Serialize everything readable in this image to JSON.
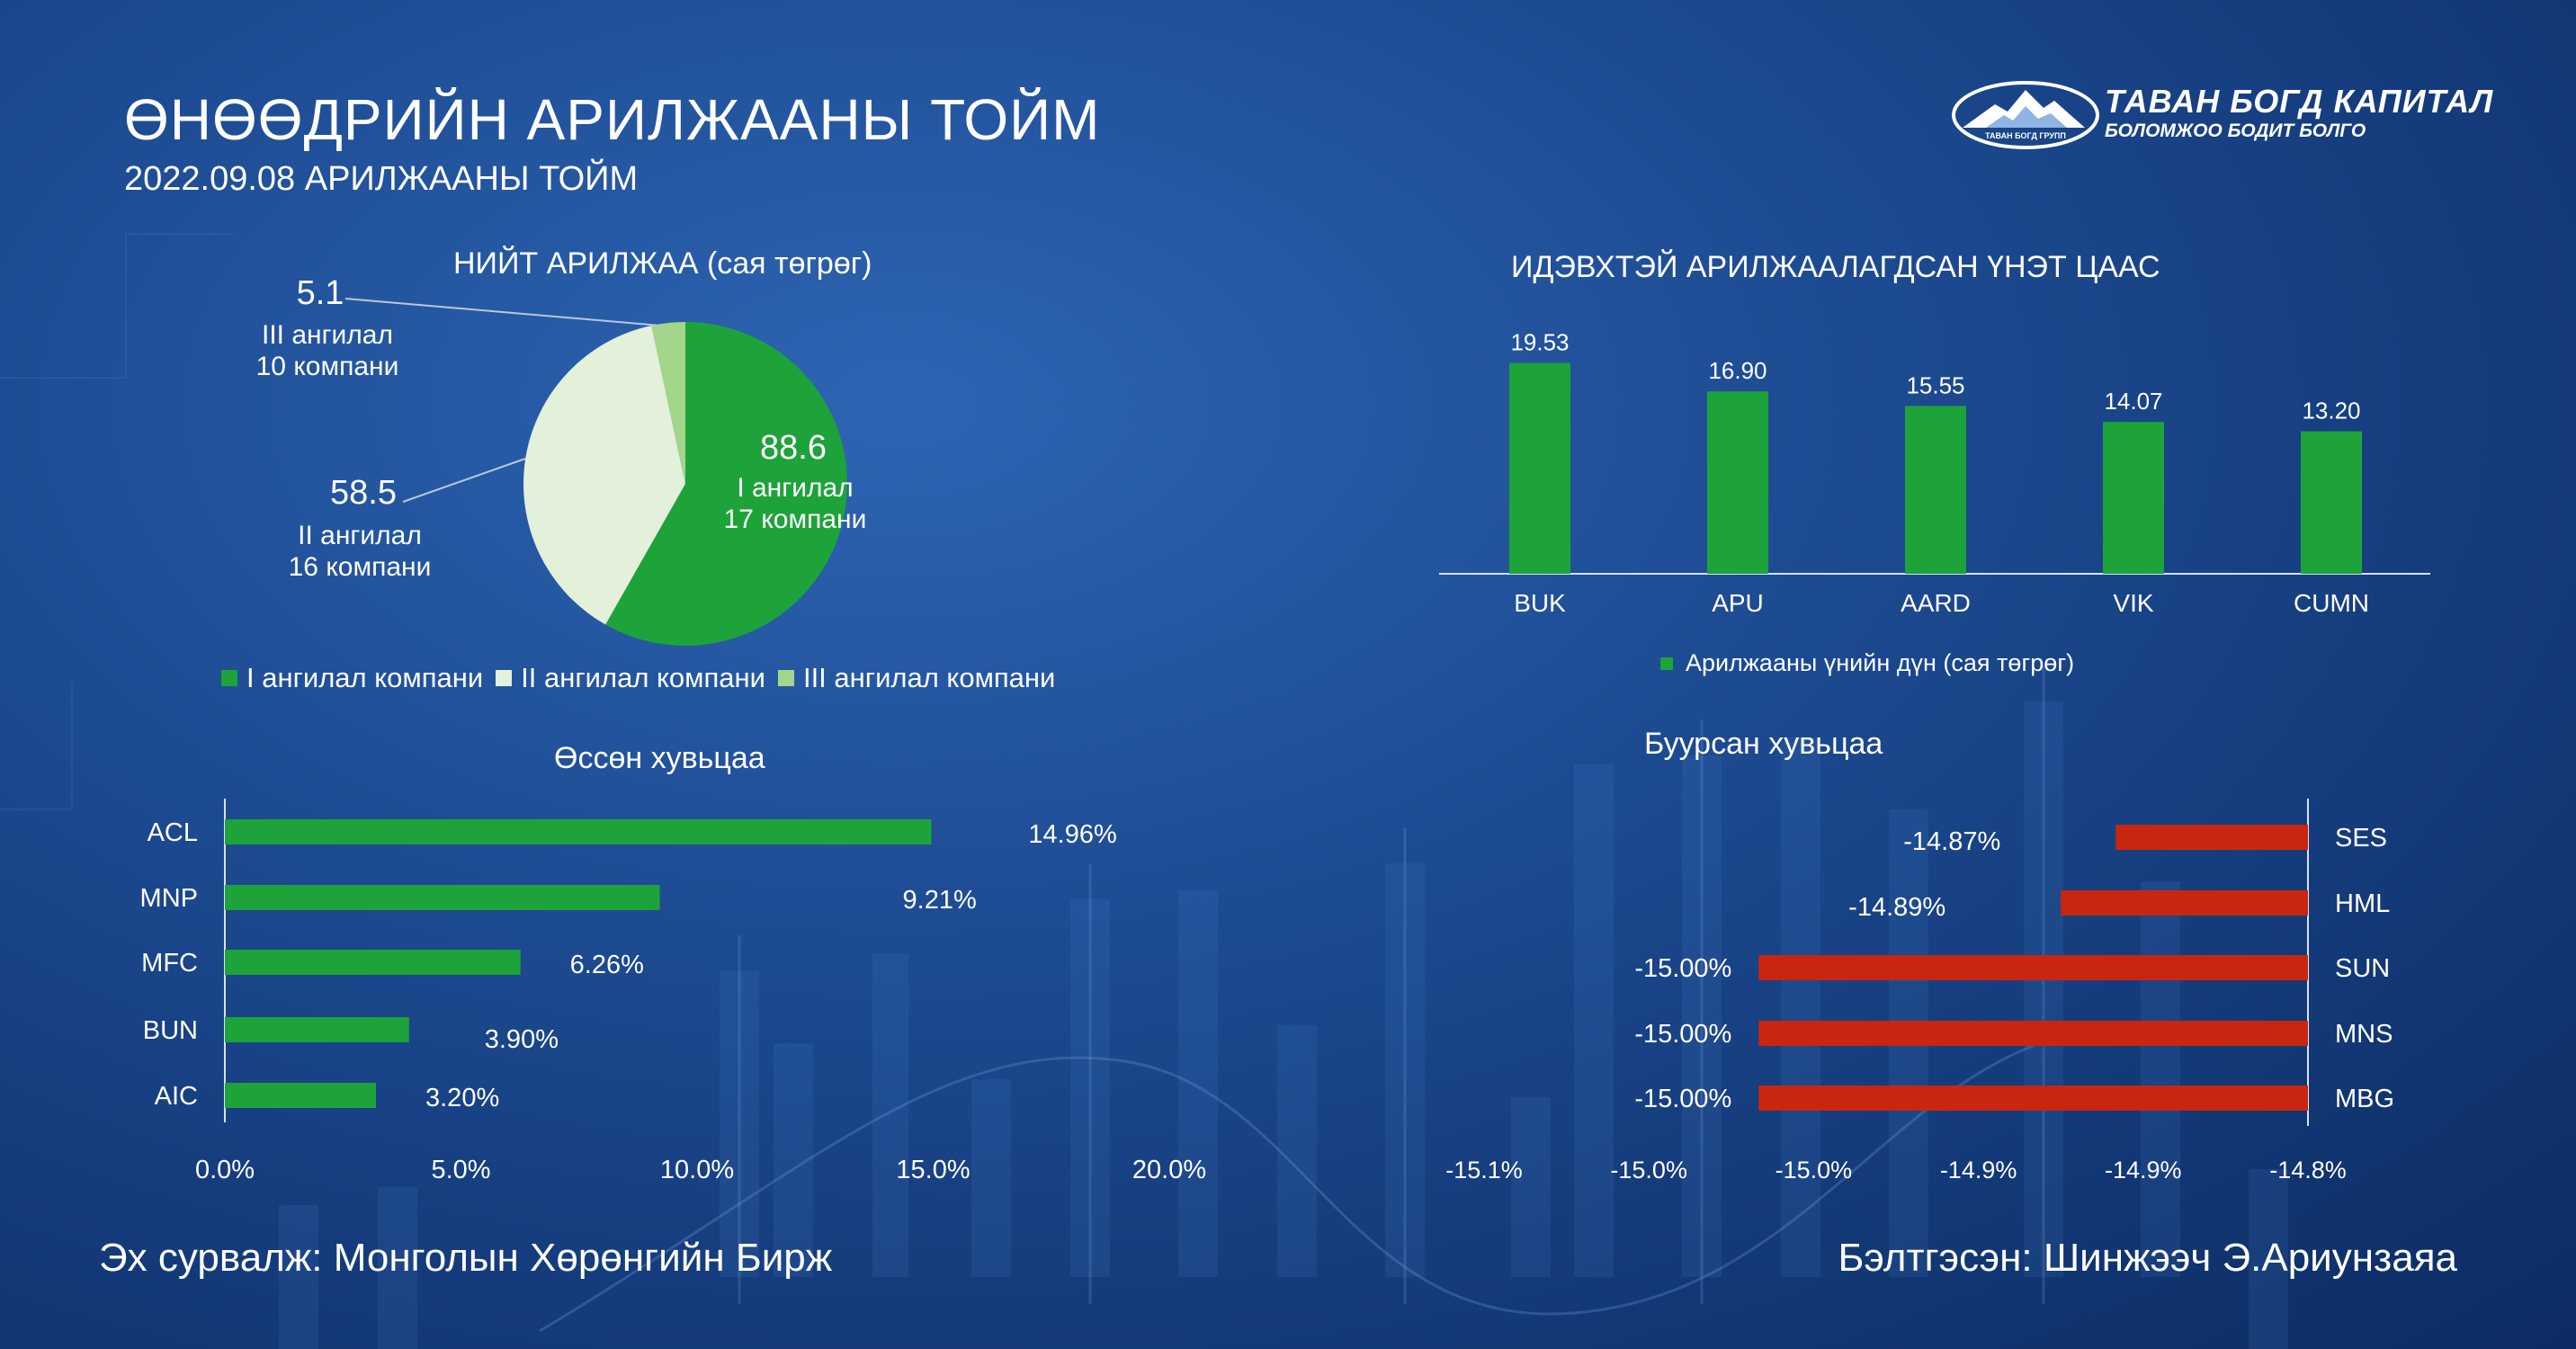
{
  "header": {
    "title": "ӨНӨӨДРИЙН АРИЛЖААНЫ ТОЙМ",
    "subtitle": "2022.09.08 АРИЛЖААНЫ ТОЙМ"
  },
  "logo": {
    "name": "ТАВАН БОГД КАПИТАЛ",
    "tagline": "БОЛОМЖОО БОДИТ БОЛГО",
    "badge_text": "ТАВАН БОГД ГРУПП"
  },
  "colors": {
    "green": "#1ea33a",
    "light": "#e3f0da",
    "pale_green": "#a3d58b",
    "red": "#c9260f",
    "axis": "#d8e2f1"
  },
  "footer": {
    "source": "Эх сурвалж: Монголын Хөрөнгийн Бирж",
    "prepared_by": "Бэлтгэсэн: Шинжээч Э.Ариунзаяа"
  },
  "chart_data": [
    {
      "type": "pie",
      "title": "НИЙТ АРИЛЖАА (сая төгрөг)",
      "slices": [
        {
          "value": 88.6,
          "label": "88.6",
          "line1": "I ангилал",
          "line2": "17 компани",
          "legend": "I ангилал компани",
          "color": "#1ea33a"
        },
        {
          "value": 58.5,
          "label": "58.5",
          "line1": "II ангилал",
          "line2": "16 компани",
          "legend": "II ангилал компани",
          "color": "#e3f0da"
        },
        {
          "value": 5.1,
          "label": "5.1",
          "line1": "III ангилал",
          "line2": "10 компани",
          "legend": "III ангилал компани",
          "color": "#a3d58b"
        }
      ],
      "legend_position": "bottom"
    },
    {
      "type": "bar",
      "title": "ИДЭВХТЭЙ АРИЛЖААЛАГДСАН ҮНЭТ ЦААС",
      "categories": [
        "BUK",
        "APU",
        "AARD",
        "VIK",
        "CUMN"
      ],
      "values": [
        19.53,
        16.9,
        15.55,
        14.07,
        13.2
      ],
      "value_labels": [
        "19.53",
        "16.90",
        "15.55",
        "14.07",
        "13.20"
      ],
      "series_name": "Арилжааны үнийн дүн (сая төгрөг)",
      "legend_position": "bottom",
      "color": "#1ea33a"
    },
    {
      "type": "bar",
      "orientation": "horizontal",
      "title": "Өссөн хувьцаа",
      "categories": [
        "ACL",
        "MNP",
        "MFC",
        "BUN",
        "AIC"
      ],
      "values": [
        14.96,
        9.21,
        6.26,
        3.9,
        3.2
      ],
      "value_labels": [
        "14.96%",
        "9.21%",
        "6.26%",
        "3.90%",
        "3.20%"
      ],
      "x_ticks": [
        "0.0%",
        "5.0%",
        "10.0%",
        "15.0%",
        "20.0%"
      ],
      "xlim": [
        0,
        20
      ],
      "color": "#1ea33a"
    },
    {
      "type": "bar",
      "orientation": "horizontal",
      "title": "Буурсан хувьцаа",
      "categories": [
        "SES",
        "HML",
        "SUN",
        "MNS",
        "MBG"
      ],
      "values": [
        -14.87,
        -14.89,
        -15.0,
        -15.0,
        -15.0
      ],
      "value_labels": [
        "-14.87%",
        "-14.89%",
        "-15.00%",
        "-15.00%",
        "-15.00%"
      ],
      "x_ticks": [
        "-15.1%",
        "-15.0%",
        "-15.0%",
        "-14.9%",
        "-14.9%",
        "-14.8%"
      ],
      "xlim": [
        -15.1,
        -14.8
      ],
      "color": "#c9260f"
    }
  ]
}
